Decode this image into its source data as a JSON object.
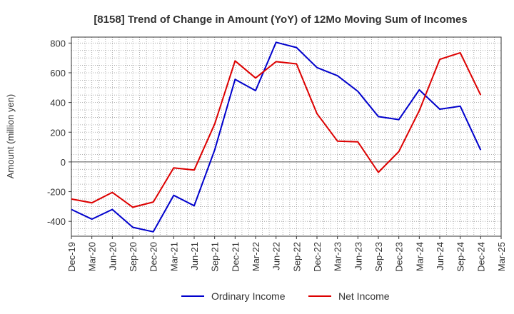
{
  "chart_data": {
    "type": "line",
    "title": "[8158]  Trend of Change in Amount (YoY) of 12Mo Moving Sum of Incomes",
    "ylabel": "Amount (million yen)",
    "xlabel": "",
    "ylim": [
      -500,
      840
    ],
    "yticks": [
      -400,
      -200,
      0,
      200,
      400,
      600,
      800
    ],
    "x": [
      "Dec-19",
      "Mar-20",
      "Jun-20",
      "Sep-20",
      "Dec-20",
      "Mar-21",
      "Jun-21",
      "Sep-21",
      "Dec-21",
      "Mar-22",
      "Jun-22",
      "Sep-22",
      "Dec-22",
      "Mar-23",
      "Jun-23",
      "Sep-23",
      "Dec-23",
      "Mar-24",
      "Jun-24",
      "Sep-24",
      "Dec-24",
      "Mar-25"
    ],
    "grid": true,
    "legend_position": "bottom",
    "series": [
      {
        "name": "Ordinary Income",
        "color": "#0000cc",
        "values": [
          -320,
          -385,
          -320,
          -440,
          -470,
          -225,
          -295,
          80,
          555,
          480,
          805,
          770,
          635,
          580,
          475,
          305,
          285,
          485,
          355,
          375,
          80,
          null
        ]
      },
      {
        "name": "Net Income",
        "color": "#dd0000",
        "values": [
          -250,
          -275,
          -205,
          -305,
          -270,
          -40,
          -55,
          255,
          680,
          565,
          675,
          660,
          325,
          140,
          135,
          -70,
          70,
          345,
          690,
          735,
          450,
          null
        ]
      }
    ]
  }
}
